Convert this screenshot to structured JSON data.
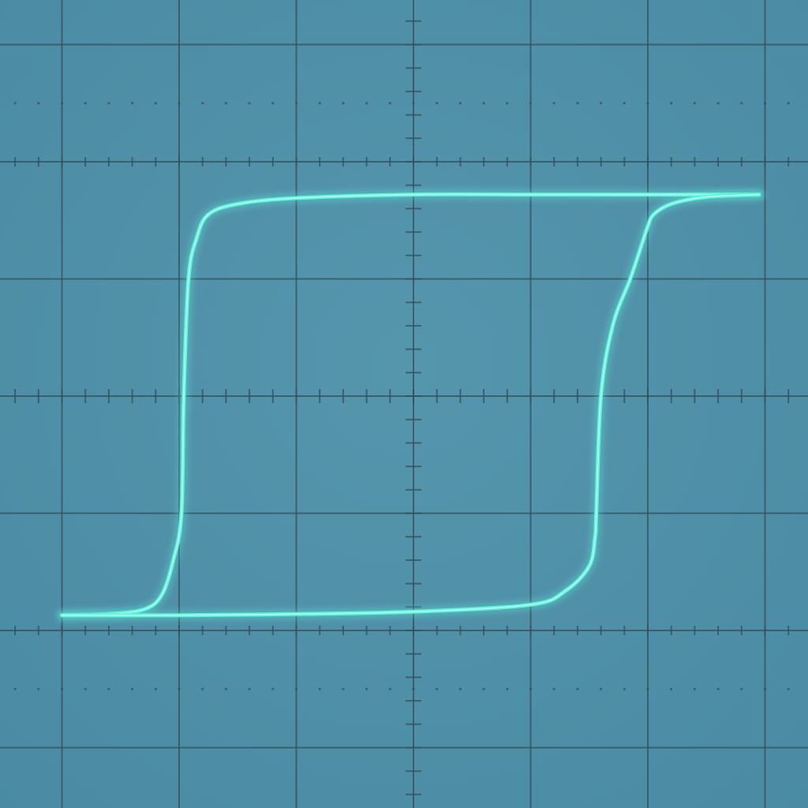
{
  "colors": {
    "screen_background": "#4a8ba3",
    "screen_background_inner": "#5596ad",
    "graticule": "#33505c",
    "trace": "#5ff2dc",
    "trace_core": "#d8fff6"
  },
  "chart_data": {
    "type": "line",
    "title": "",
    "xlabel": "",
    "ylabel": "",
    "grid": true,
    "legend": "none",
    "xlim": [
      -3,
      3
    ],
    "ylim": [
      -3.4,
      3.6
    ],
    "minor_ticks_per_division": 5,
    "dotted_subdivision_rows": [
      2.5,
      -2.5
    ],
    "series": [
      {
        "branch": "descending",
        "x": [
          2.95,
          2.5,
          2.3,
          2.0,
          1.0,
          0.0,
          -1.0,
          -1.5,
          -1.75,
          -1.85,
          -1.92,
          -1.96,
          -1.98,
          -2.05,
          -2.15,
          -2.3,
          -2.6,
          -3.0
        ],
        "y": [
          1.72,
          1.72,
          1.72,
          1.72,
          1.72,
          1.72,
          1.69,
          1.64,
          1.55,
          1.35,
          1.0,
          0.0,
          -1.0,
          -1.4,
          -1.7,
          -1.82,
          -1.86,
          -1.87
        ]
      },
      {
        "branch": "ascending",
        "x": [
          -3.0,
          -2.5,
          -2.0,
          -1.0,
          0.0,
          1.0,
          1.3,
          1.5,
          1.55,
          1.56,
          1.6,
          1.7,
          1.85,
          1.95,
          2.0,
          2.05,
          2.2,
          2.5,
          2.95
        ],
        "y": [
          -1.87,
          -1.87,
          -1.87,
          -1.86,
          -1.84,
          -1.78,
          -1.66,
          -1.45,
          -1.2,
          -1.0,
          0.0,
          0.6,
          1.0,
          1.3,
          1.45,
          1.55,
          1.64,
          1.7,
          1.72
        ]
      }
    ]
  }
}
